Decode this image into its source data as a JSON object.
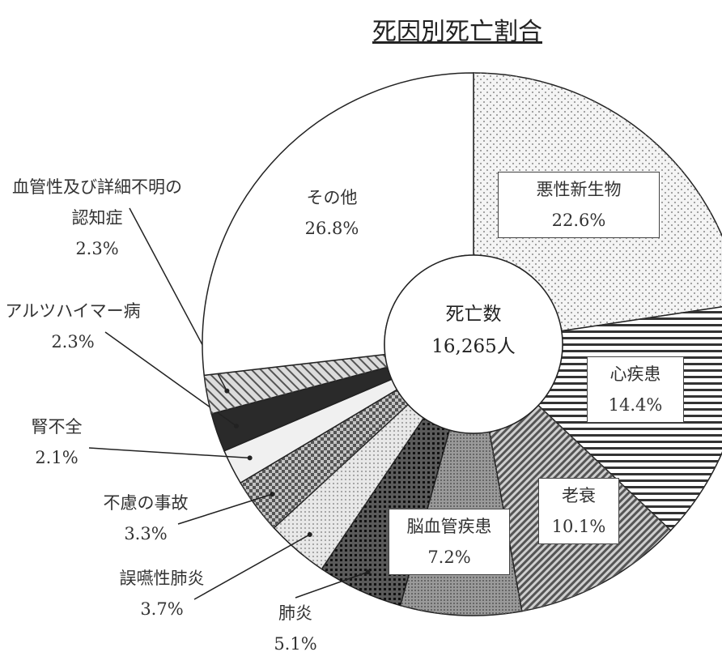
{
  "chart_data": {
    "type": "pie",
    "title": "死因別死亡割合",
    "center_title": "死亡数",
    "center_value": "16,265人",
    "categories": [
      "悪性新生物",
      "心疾患",
      "老衰",
      "脳血管疾患",
      "肺炎",
      "誤嚥性肺炎",
      "不慮の事故",
      "腎不全",
      "アルツハイマー病",
      "血管性及び詳細不明の認知症",
      "その他"
    ],
    "values": [
      22.6,
      14.4,
      10.1,
      7.2,
      5.1,
      3.7,
      3.3,
      2.1,
      2.3,
      2.3,
      26.8
    ],
    "value_labels": [
      "22.6%",
      "14.4%",
      "10.1%",
      "7.2%",
      "5.1%",
      "3.7%",
      "3.3%",
      "2.1%",
      "2.3%",
      "2.3%",
      "26.8%"
    ],
    "colors": [
      "#f4f4f4",
      "#ffffff",
      "#cfcfcf",
      "#9a9a9a",
      "#5a5a5a",
      "#e8e8e8",
      "#c4c4c4",
      "#f0f0f0",
      "#2a2a2a",
      "#dcdcdc",
      "#ffffff"
    ]
  }
}
